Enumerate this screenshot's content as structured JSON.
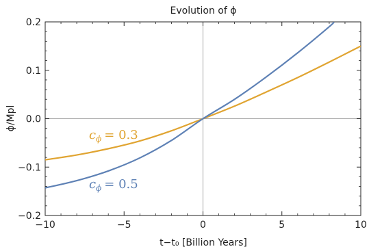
{
  "chart_data": {
    "type": "line",
    "title": "Evolution of ϕ",
    "xlabel": "t−t₀ [Billion Years]",
    "ylabel": "ϕ/Mpl",
    "xlim": [
      -10,
      10
    ],
    "ylim": [
      -0.2,
      0.2
    ],
    "x_ticks": [
      -10,
      -5,
      0,
      5,
      10
    ],
    "x_tick_labels": [
      "−10",
      "−5",
      "0",
      "5",
      "10"
    ],
    "y_ticks": [
      -0.2,
      -0.1,
      0.0,
      0.1,
      0.2
    ],
    "y_tick_labels": [
      "−0.2",
      "−0.1",
      "0.0",
      "0.1",
      "0.2"
    ],
    "grid": false,
    "zero_lines": true,
    "series": [
      {
        "name": "cϕ = 0.3",
        "label_var": "c",
        "label_sub": "ϕ",
        "label_val": "= 0.3",
        "color": "#e0a431",
        "x": [
          -10,
          -8,
          -6,
          -4,
          -2,
          0,
          2,
          4,
          6,
          8,
          10
        ],
        "y": [
          -0.085,
          -0.075,
          -0.062,
          -0.046,
          -0.025,
          0.0,
          0.026,
          0.055,
          0.085,
          0.117,
          0.15
        ]
      },
      {
        "name": "cϕ = 0.5",
        "label_var": "c",
        "label_sub": "ϕ",
        "label_val": "= 0.5",
        "color": "#5e81b5",
        "x": [
          -10,
          -8,
          -6,
          -4,
          -2,
          0,
          2,
          4,
          6,
          8,
          8.3
        ],
        "y": [
          -0.143,
          -0.128,
          -0.108,
          -0.081,
          -0.045,
          0.0,
          0.04,
          0.086,
          0.136,
          0.19,
          0.2
        ]
      }
    ]
  }
}
